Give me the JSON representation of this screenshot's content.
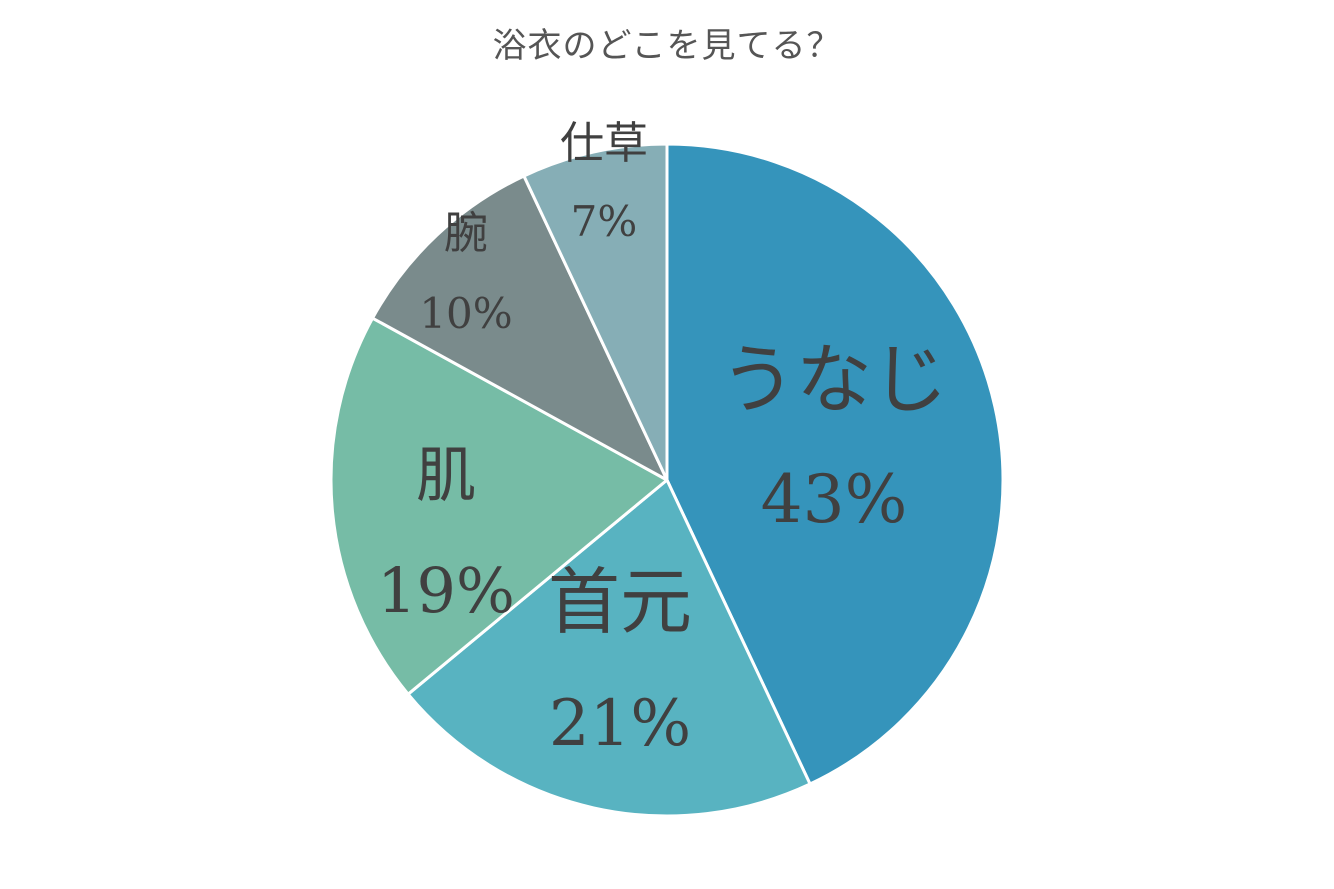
{
  "chart_data": {
    "type": "pie",
    "title": "浴衣のどこを見てる？",
    "unit": "%",
    "start_angle": "12 o'clock",
    "direction": "clockwise",
    "slices": [
      {
        "label": "うなじ",
        "value": 43,
        "value_label": "43%",
        "color": "#3594bb"
      },
      {
        "label": "首元",
        "value": 21,
        "value_label": "21%",
        "color": "#58b3c1"
      },
      {
        "label": "肌",
        "value": 19,
        "value_label": "19%",
        "color": "#76bca6"
      },
      {
        "label": "腕",
        "value": 10,
        "value_label": "10%",
        "color": "#7a8b8c"
      },
      {
        "label": "仕草",
        "value": 7,
        "value_label": "7%",
        "color": "#86aeb6"
      }
    ],
    "slice_border_color": "#ffffff",
    "label_color": "#404040"
  }
}
